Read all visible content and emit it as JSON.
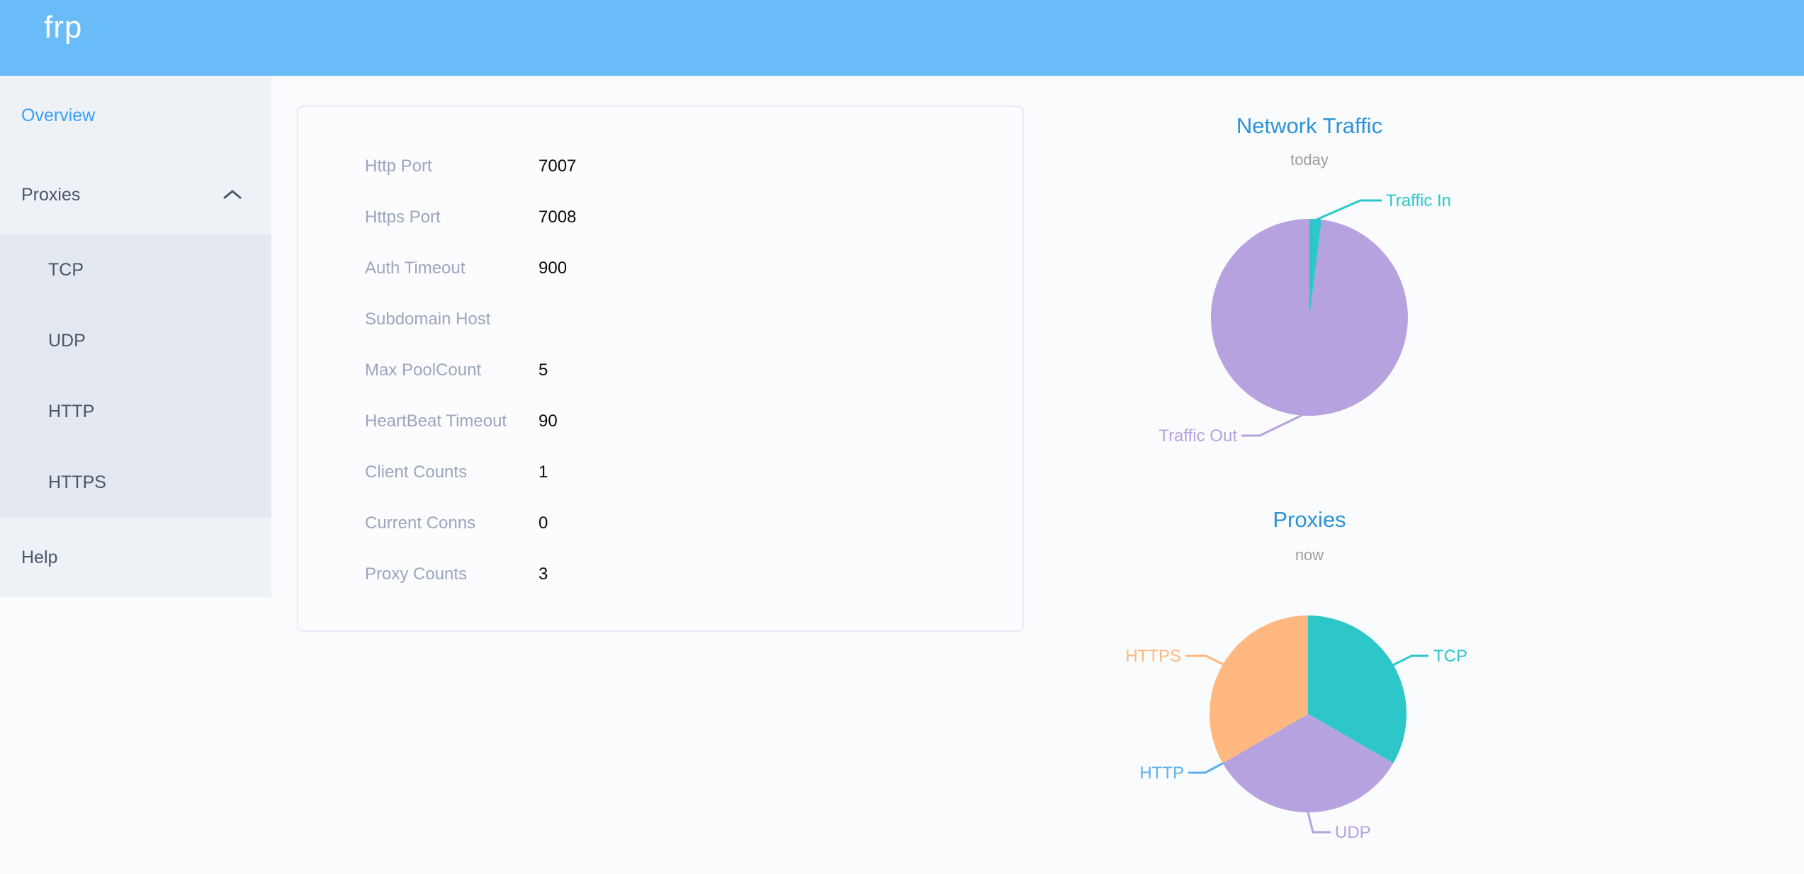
{
  "header": {
    "logo": "frp"
  },
  "sidebar": {
    "items": [
      {
        "id": "overview",
        "label": "Overview",
        "level": 1,
        "active": true
      },
      {
        "id": "proxies",
        "label": "Proxies",
        "level": 1,
        "active": false,
        "expanded": true,
        "chevron": "up"
      },
      {
        "id": "tcp",
        "label": "TCP",
        "level": 2
      },
      {
        "id": "udp",
        "label": "UDP",
        "level": 2
      },
      {
        "id": "http",
        "label": "HTTP",
        "level": 2
      },
      {
        "id": "https",
        "label": "HTTPS",
        "level": 2
      },
      {
        "id": "help",
        "label": "Help",
        "level": 1,
        "active": false
      }
    ]
  },
  "server_info": {
    "rows": [
      {
        "label": "Http Port",
        "value": "7007"
      },
      {
        "label": "Https Port",
        "value": "7008"
      },
      {
        "label": "Auth Timeout",
        "value": "900"
      },
      {
        "label": "Subdomain Host",
        "value": ""
      },
      {
        "label": "Max PoolCount",
        "value": "5"
      },
      {
        "label": "HeartBeat Timeout",
        "value": "90"
      },
      {
        "label": "Client Counts",
        "value": "1"
      },
      {
        "label": "Current Conns",
        "value": "0"
      },
      {
        "label": "Proxy Counts",
        "value": "3"
      }
    ]
  },
  "chart_data": [
    {
      "type": "pie",
      "title": "Network Traffic",
      "subtitle": "today",
      "legend_position": "callout-labels",
      "unit": "percent of circle (estimated from arc angles; numeric byte values not shown)",
      "series": [
        {
          "name": "Traffic In",
          "value": 2,
          "color": "#2ec7c9"
        },
        {
          "name": "Traffic Out",
          "value": 98,
          "color": "#b6a2de"
        }
      ]
    },
    {
      "type": "pie",
      "title": "Proxies",
      "subtitle": "now",
      "legend_position": "callout-labels",
      "unit": "proxy count",
      "series": [
        {
          "name": "TCP",
          "value": 1,
          "color": "#2ec7c9"
        },
        {
          "name": "UDP",
          "value": 1,
          "color": "#b6a2de"
        },
        {
          "name": "HTTP",
          "value": 0,
          "color": "#5ab1ef"
        },
        {
          "name": "HTTPS",
          "value": 1,
          "color": "#ffb980"
        }
      ]
    }
  ],
  "colors": {
    "header_bg": "#6abcf9",
    "sidebar_bg": "#eef1f6",
    "submenu_bg": "#e4e8f1",
    "menu_text": "#48576a",
    "menu_active": "#3aa0f5",
    "page_bg": "#fafbfc",
    "panel_border": "#e6ebf5",
    "info_label": "#9aa6bd",
    "info_value": "#0a0a0a",
    "chart_title": "#2b93d8",
    "chart_subtitle": "#9e9e9e"
  }
}
